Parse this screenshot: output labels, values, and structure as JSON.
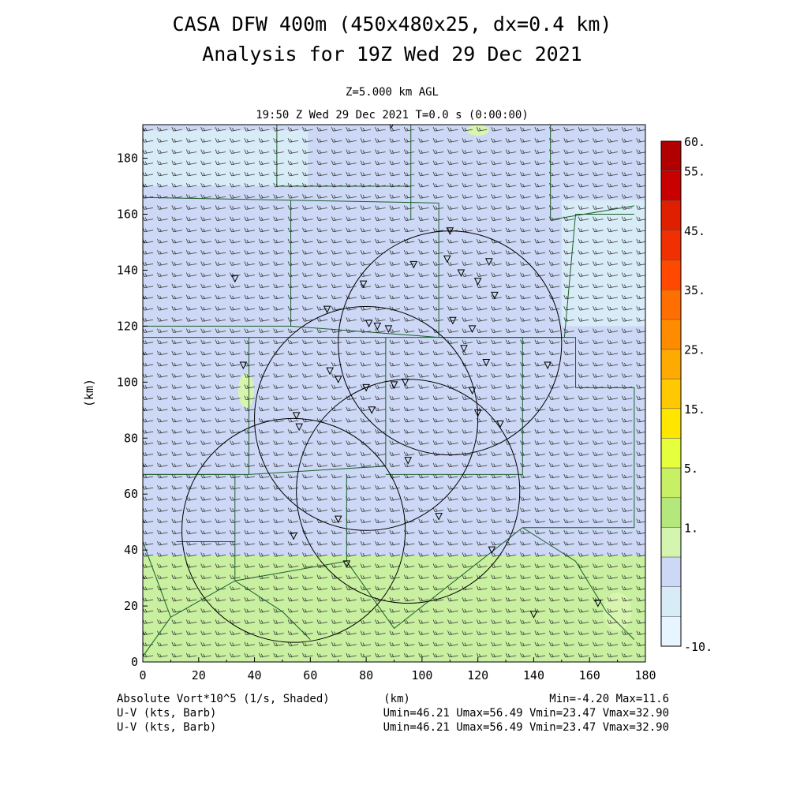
{
  "title_line1": "CASA DFW 400m (450x480x25, dx=0.4 km)",
  "title_line2": "Analysis for 19Z Wed 29 Dec 2021",
  "level_label": "Z=5.000 km AGL",
  "time_label": "19:50 Z Wed 29 Dec 2021   T=0.0 s (0:00:00)",
  "colors": {
    "shade_low": "#ccd8f5",
    "shade_mid": "#d8ecf8",
    "shade_green": "#c8f0a0",
    "shade_green_light": "#d8f5b0",
    "county_lines": "#1a5e2a",
    "radar_rings": "#000000"
  },
  "chart_data": {
    "type": "heatmap",
    "xlabel": "(km)",
    "ylabel": "(km)",
    "xlim": [
      0,
      180
    ],
    "ylim": [
      0,
      192
    ],
    "x_ticks": [
      "0",
      "20",
      "40",
      "60",
      "80",
      "100",
      "120",
      "140",
      "160",
      "180"
    ],
    "y_ticks": [
      "0",
      "20",
      "40",
      "60",
      "80",
      "100",
      "120",
      "140",
      "160",
      "180"
    ],
    "radar_rings_center_km": [
      {
        "x": 110,
        "y": 114,
        "r": 40
      },
      {
        "x": 80,
        "y": 87,
        "r": 40
      },
      {
        "x": 95,
        "y": 61,
        "r": 40
      },
      {
        "x": 54,
        "y": 47,
        "r": 40
      }
    ],
    "radar_sites_km": [
      [
        89,
        192
      ],
      [
        110,
        154
      ],
      [
        97,
        142
      ],
      [
        109,
        144
      ],
      [
        124,
        143
      ],
      [
        120,
        136
      ],
      [
        114,
        139
      ],
      [
        33,
        137
      ],
      [
        79,
        135
      ],
      [
        126,
        131
      ],
      [
        66,
        126
      ],
      [
        81,
        121
      ],
      [
        84,
        120
      ],
      [
        88,
        119
      ],
      [
        111,
        122
      ],
      [
        118,
        119
      ],
      [
        115,
        112
      ],
      [
        123,
        107
      ],
      [
        145,
        106
      ],
      [
        36,
        106
      ],
      [
        67,
        104
      ],
      [
        70,
        101
      ],
      [
        80,
        98
      ],
      [
        90,
        99
      ],
      [
        94,
        100
      ],
      [
        118,
        97
      ],
      [
        120,
        89
      ],
      [
        82,
        90
      ],
      [
        128,
        85
      ],
      [
        55,
        88
      ],
      [
        56,
        84
      ],
      [
        95,
        72
      ],
      [
        70,
        51
      ],
      [
        106,
        52
      ],
      [
        54,
        45
      ],
      [
        125,
        40
      ],
      [
        73,
        35
      ],
      [
        140,
        17
      ],
      [
        163,
        21
      ]
    ],
    "colorbar": {
      "labels": [
        "60.",
        "55.",
        "45.",
        "35.",
        "25.",
        "15.",
        "5.",
        "1.",
        "-10."
      ],
      "segments": [
        "#b00000",
        "#c80000",
        "#e01e00",
        "#f03000",
        "#ff4800",
        "#ff6e00",
        "#ff8c00",
        "#ffaa00",
        "#ffc800",
        "#ffe600",
        "#e6ff3c",
        "#c8f064",
        "#b4e87c",
        "#d4f5b0",
        "#ccd8f5",
        "#d8ecf8",
        "#e6f5ff"
      ]
    },
    "fields": [
      {
        "name": "Absolute Vort*10^5 (1/s, Shaded)",
        "min": "-4.20",
        "max": "11.6"
      },
      {
        "name": "U-V (kts, Barb)",
        "umin": "46.21",
        "umax": "56.49",
        "vmin": "23.47",
        "vmax": "32.90"
      },
      {
        "name": "U-V (kts, Barb)",
        "umin": "46.21",
        "umax": "56.49",
        "vmin": "23.47",
        "vmax": "32.90"
      }
    ]
  },
  "footer": {
    "field1_label": "Absolute Vort*10^5 (1/s, Shaded)",
    "field1_unit": "(km)",
    "field1_range": "Min=-4.20 Max=11.6",
    "field2_label": "U-V (kts, Barb)",
    "field2_range": "Umin=46.21 Umax=56.49 Vmin=23.47 Vmax=32.90",
    "field3_label": "U-V (kts, Barb)",
    "field3_range": "Umin=46.21 Umax=56.49 Vmin=23.47 Vmax=32.90"
  }
}
